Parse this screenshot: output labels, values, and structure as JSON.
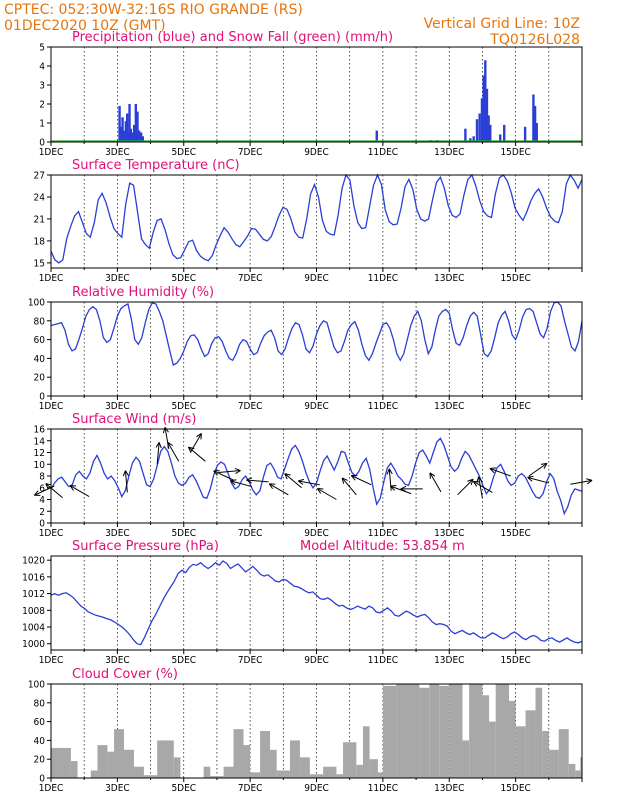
{
  "header": {
    "line1": "CPTEC:   052:30W-32:16S  RIO GRANDE (RS)",
    "line2": "01DEC2020 10Z (GMT)",
    "grid_note": "Vertical Grid Line: 10Z",
    "run_code": "TQ0126L028"
  },
  "x_labels": [
    "1DEC",
    "3DEC",
    "5DEC",
    "7DEC",
    "9DEC",
    "11DEC",
    "13DEC",
    "15DEC"
  ],
  "colors": {
    "line": "#2a3fd6",
    "snow": "#20b020",
    "cloud": "#a8a8a8",
    "title": "#e0107a",
    "header": "#e8740c"
  },
  "chart_data": [
    {
      "type": "bar",
      "title": "Precipitation (blue) and Snow Fall (green) (mm/h)",
      "ylim": [
        0,
        5
      ],
      "yticks": [
        0,
        1,
        2,
        3,
        4,
        5
      ],
      "series": [
        {
          "name": "Precipitation",
          "points": [
            [
              2.03,
              1.9
            ],
            [
              2.07,
              0.8
            ],
            [
              2.12,
              1.3
            ],
            [
              2.17,
              0.6
            ],
            [
              2.22,
              1.1
            ],
            [
              2.26,
              1.5
            ],
            [
              2.29,
              0.5
            ],
            [
              2.33,
              2.0
            ],
            [
              2.37,
              0.7
            ],
            [
              2.42,
              0.5
            ],
            [
              2.47,
              0.9
            ],
            [
              2.52,
              2.0
            ],
            [
              2.57,
              1.6
            ],
            [
              2.62,
              0.6
            ],
            [
              2.68,
              0.5
            ],
            [
              2.73,
              0.3
            ],
            [
              9.78,
              0.6
            ],
            [
              10.4,
              0.05
            ],
            [
              11.4,
              0.1
            ],
            [
              11.6,
              0.1
            ],
            [
              12.45,
              0.7
            ],
            [
              12.6,
              0.2
            ],
            [
              12.7,
              0.3
            ],
            [
              12.8,
              1.2
            ],
            [
              12.88,
              1.5
            ],
            [
              12.95,
              2.3
            ],
            [
              13.0,
              3.5
            ],
            [
              13.05,
              4.3
            ],
            [
              13.1,
              2.8
            ],
            [
              13.15,
              1.4
            ],
            [
              13.2,
              0.9
            ],
            [
              13.5,
              0.4
            ],
            [
              13.62,
              0.9
            ],
            [
              14.25,
              0.8
            ],
            [
              14.5,
              2.5
            ],
            [
              14.55,
              1.9
            ],
            [
              14.6,
              1.0
            ]
          ]
        }
      ]
    },
    {
      "type": "line",
      "title": "Surface Temperature (nC)",
      "ylim": [
        14.3,
        27
      ],
      "yticks": [
        15,
        18,
        21,
        24,
        27
      ],
      "series": [
        {
          "name": "Temperature",
          "values": [
            16.6,
            15.4,
            15.0,
            15.4,
            18.3,
            20.0,
            21.4,
            22.0,
            20.5,
            19.0,
            18.5,
            20.5,
            23.6,
            24.5,
            23.2,
            21.3,
            19.7,
            19.0,
            18.5,
            23.0,
            25.9,
            25.6,
            22.0,
            18.3,
            17.5,
            17.0,
            19.2,
            20.8,
            21.0,
            19.5,
            17.6,
            16.1,
            15.6,
            15.7,
            16.8,
            17.9,
            18.1,
            16.7,
            15.9,
            15.5,
            15.3,
            16.0,
            17.5,
            18.7,
            19.8,
            19.2,
            18.3,
            17.5,
            17.2,
            17.9,
            18.7,
            19.7,
            19.6,
            18.9,
            18.2,
            18.0,
            18.6,
            20.0,
            21.5,
            22.6,
            22.3,
            21.0,
            19.2,
            18.5,
            18.4,
            21.0,
            24.4,
            25.7,
            24.0,
            20.8,
            19.3,
            18.9,
            18.8,
            21.5,
            25.2,
            27.0,
            26.3,
            22.8,
            20.5,
            19.7,
            19.8,
            22.7,
            25.6,
            27.0,
            25.7,
            22.2,
            20.6,
            20.2,
            20.3,
            22.5,
            25.4,
            26.4,
            25.0,
            22.3,
            21.0,
            20.7,
            21.0,
            23.6,
            26.0,
            26.7,
            25.2,
            22.8,
            21.5,
            21.2,
            21.7,
            24.3,
            26.4,
            27.0,
            25.5,
            23.5,
            22.0,
            21.4,
            21.2,
            24.5,
            26.6,
            27.0,
            26.2,
            24.6,
            22.5,
            21.5,
            20.8,
            22.0,
            23.5,
            24.5,
            25.1,
            24.0,
            22.5,
            21.3,
            20.7,
            20.5,
            22.0,
            25.8,
            27.0,
            26.3,
            25.2,
            26.4
          ]
        }
      ]
    },
    {
      "type": "line",
      "title": "Relative Humidity (%)",
      "ylim": [
        0,
        100
      ],
      "yticks": [
        0,
        20,
        40,
        60,
        80,
        100
      ],
      "series": [
        {
          "name": "Relative Humidity",
          "values": [
            75,
            76,
            77,
            78,
            70,
            55,
            48,
            50,
            60,
            72,
            85,
            92,
            95,
            92,
            80,
            62,
            57,
            60,
            72,
            85,
            93,
            96,
            98,
            82,
            60,
            55,
            62,
            78,
            92,
            99,
            98,
            90,
            80,
            64,
            48,
            33,
            35,
            40,
            48,
            58,
            64,
            65,
            60,
            50,
            42,
            45,
            56,
            62,
            63,
            58,
            48,
            40,
            38,
            45,
            55,
            60,
            58,
            50,
            44,
            46,
            56,
            64,
            68,
            70,
            62,
            48,
            44,
            50,
            62,
            72,
            78,
            76,
            65,
            50,
            46,
            53,
            66,
            75,
            80,
            78,
            65,
            52,
            46,
            48,
            58,
            70,
            76,
            79,
            70,
            55,
            43,
            38,
            45,
            56,
            66,
            76,
            78,
            72,
            60,
            45,
            38,
            45,
            60,
            75,
            85,
            90,
            80,
            60,
            45,
            52,
            70,
            85,
            90,
            92,
            88,
            70,
            56,
            54,
            62,
            75,
            85,
            89,
            85,
            65,
            45,
            42,
            48,
            62,
            78,
            86,
            90,
            80,
            65,
            60,
            70,
            84,
            92,
            93,
            90,
            78,
            66,
            62,
            72,
            90,
            99,
            100,
            96,
            80,
            66,
            52,
            48,
            58,
            80
          ]
        }
      ]
    },
    {
      "type": "line",
      "title": "Surface Wind (m/s)",
      "ylim": [
        0,
        16
      ],
      "yticks": [
        0,
        2,
        4,
        6,
        8,
        10,
        12,
        14,
        16
      ],
      "series": [
        {
          "name": "Wind Speed",
          "values": [
            5.8,
            6.8,
            7.5,
            7.8,
            7.0,
            6.2,
            6.5,
            8.2,
            8.8,
            8.0,
            7.5,
            8.5,
            10.5,
            11.5,
            10.2,
            8.5,
            7.5,
            8.0,
            7.2,
            6.0,
            4.5,
            5.5,
            8.0,
            10.2,
            11.2,
            10.5,
            8.5,
            6.5,
            6.2,
            7.5,
            9.8,
            12.2,
            13.0,
            12.2,
            10.2,
            8.0,
            6.8,
            6.4,
            6.8,
            7.8,
            8.2,
            7.2,
            5.8,
            4.4,
            4.2,
            5.8,
            8.2,
            9.8,
            10.4,
            10.0,
            8.5,
            6.8,
            5.8,
            6.2,
            7.4,
            8.0,
            7.0,
            5.6,
            4.8,
            5.5,
            7.8,
            9.8,
            10.2,
            9.2,
            7.8,
            7.5,
            9.2,
            11.0,
            12.6,
            13.2,
            12.2,
            10.6,
            8.6,
            7.0,
            6.0,
            6.8,
            8.8,
            10.6,
            11.4,
            10.2,
            9.0,
            10.4,
            12.2,
            12.0,
            10.2,
            8.6,
            8.0,
            8.8,
            10.2,
            11.0,
            9.2,
            6.0,
            3.2,
            4.2,
            7.0,
            9.4,
            10.2,
            9.2,
            8.0,
            7.4,
            6.6,
            6.4,
            8.0,
            10.2,
            12.0,
            12.4,
            11.4,
            10.2,
            12.0,
            13.8,
            14.4,
            13.2,
            11.4,
            9.6,
            8.8,
            9.4,
            11.0,
            12.2,
            11.6,
            10.4,
            9.2,
            8.0,
            6.4,
            5.0,
            5.8,
            7.8,
            9.4,
            10.0,
            8.8,
            7.2,
            6.4,
            6.8,
            8.0,
            8.4,
            7.8,
            6.6,
            5.4,
            4.4,
            4.2,
            5.0,
            7.0,
            8.4,
            7.6,
            5.4,
            3.8,
            1.6,
            2.8,
            4.8,
            5.8,
            5.6,
            5.4
          ]
        }
      ]
    },
    {
      "type": "line",
      "title": "Surface Pressure (hPa)",
      "annotation": "Model Altitude: 53.854  m",
      "ylim": [
        998.5,
        1021
      ],
      "yticks": [
        1000,
        1004,
        1008,
        1012,
        1016,
        1020
      ],
      "series": [
        {
          "name": "Surface Pressure",
          "values": [
            1011.6,
            1012.0,
            1011.6,
            1012.0,
            1012.2,
            1011.7,
            1011.0,
            1010.0,
            1009.0,
            1008.4,
            1007.6,
            1007.2,
            1006.8,
            1006.6,
            1006.3,
            1006.0,
            1005.7,
            1005.2,
            1004.6,
            1004.0,
            1003.2,
            1002.2,
            1001.0,
            1000.0,
            999.8,
            1001.5,
            1003.5,
            1005.5,
            1007.0,
            1008.8,
            1010.6,
            1012.2,
            1013.6,
            1015.0,
            1016.8,
            1017.6,
            1017.0,
            1018.3,
            1019.0,
            1018.8,
            1019.4,
            1018.6,
            1018.0,
            1018.6,
            1019.4,
            1018.8,
            1019.8,
            1019.2,
            1018.0,
            1018.6,
            1019.1,
            1018.2,
            1017.2,
            1017.8,
            1018.5,
            1017.6,
            1016.6,
            1016.2,
            1016.5,
            1015.8,
            1015.0,
            1014.8,
            1015.4,
            1015.2,
            1014.5,
            1013.8,
            1013.6,
            1013.2,
            1012.6,
            1012.2,
            1012.4,
            1011.6,
            1010.8,
            1010.6,
            1011.0,
            1010.4,
            1009.6,
            1009.0,
            1009.2,
            1008.6,
            1008.2,
            1008.5,
            1009.0,
            1008.6,
            1008.3,
            1009.0,
            1008.6,
            1007.6,
            1007.4,
            1008.0,
            1008.6,
            1007.8,
            1006.8,
            1006.6,
            1007.2,
            1007.8,
            1007.4,
            1006.8,
            1006.4,
            1006.8,
            1007.0,
            1006.2,
            1005.2,
            1004.6,
            1004.8,
            1004.6,
            1004.2,
            1003.0,
            1002.4,
            1002.8,
            1003.2,
            1002.6,
            1002.2,
            1002.6,
            1002.0,
            1001.4,
            1001.4,
            1002.0,
            1002.6,
            1002.2,
            1001.6,
            1001.2,
            1001.6,
            1002.4,
            1002.8,
            1002.2,
            1001.4,
            1001.0,
            1001.6,
            1002.0,
            1001.6,
            1000.8,
            1000.6,
            1001.2,
            1001.4,
            1000.8,
            1000.4,
            1000.9,
            1001.4,
            1000.8,
            1000.4,
            1000.2,
            1000.6
          ]
        }
      ]
    },
    {
      "type": "bar",
      "title": "Cloud Cover (%)",
      "ylim": [
        0,
        100
      ],
      "yticks": [
        0,
        20,
        40,
        60,
        80,
        100
      ],
      "series": [
        {
          "name": "Cloud Cover",
          "segments": [
            [
              0.0,
              0.6,
              32
            ],
            [
              0.6,
              0.8,
              18
            ],
            [
              0.8,
              1.2,
              0
            ],
            [
              1.2,
              1.4,
              8
            ],
            [
              1.4,
              1.7,
              35
            ],
            [
              1.7,
              1.9,
              28
            ],
            [
              1.9,
              2.2,
              52
            ],
            [
              2.2,
              2.5,
              30
            ],
            [
              2.5,
              2.8,
              12
            ],
            [
              2.8,
              3.2,
              3
            ],
            [
              3.2,
              3.7,
              40
            ],
            [
              3.7,
              3.9,
              22
            ],
            [
              3.9,
              4.6,
              0
            ],
            [
              4.6,
              4.8,
              12
            ],
            [
              4.8,
              5.2,
              2
            ],
            [
              5.2,
              5.5,
              12
            ],
            [
              5.5,
              5.8,
              52
            ],
            [
              5.8,
              6.0,
              35
            ],
            [
              6.0,
              6.3,
              6
            ],
            [
              6.3,
              6.6,
              50
            ],
            [
              6.6,
              6.8,
              30
            ],
            [
              6.8,
              7.2,
              8
            ],
            [
              7.2,
              7.5,
              40
            ],
            [
              7.5,
              7.8,
              22
            ],
            [
              7.8,
              8.2,
              4
            ],
            [
              8.2,
              8.6,
              12
            ],
            [
              8.6,
              8.8,
              4
            ],
            [
              8.8,
              9.2,
              38
            ],
            [
              9.2,
              9.4,
              14
            ],
            [
              9.4,
              9.6,
              55
            ],
            [
              9.6,
              9.85,
              20
            ],
            [
              9.85,
              10.0,
              6
            ],
            [
              10.0,
              10.4,
              98
            ],
            [
              10.4,
              11.1,
              100
            ],
            [
              11.1,
              11.4,
              96
            ],
            [
              11.4,
              11.7,
              100
            ],
            [
              11.7,
              12.0,
              98
            ],
            [
              12.0,
              12.4,
              100
            ],
            [
              12.4,
              12.6,
              40
            ],
            [
              12.6,
              13.0,
              100
            ],
            [
              13.0,
              13.2,
              88
            ],
            [
              13.2,
              13.4,
              60
            ],
            [
              13.4,
              13.8,
              100
            ],
            [
              13.8,
              14.0,
              82
            ],
            [
              14.0,
              14.3,
              55
            ],
            [
              14.3,
              14.6,
              72
            ],
            [
              14.6,
              14.8,
              96
            ],
            [
              14.8,
              15.0,
              50
            ],
            [
              15.0,
              15.3,
              30
            ],
            [
              15.3,
              15.6,
              52
            ],
            [
              15.6,
              15.8,
              15
            ],
            [
              15.8,
              15.95,
              8
            ],
            [
              15.95,
              16.0,
              22
            ]
          ]
        }
      ]
    }
  ]
}
